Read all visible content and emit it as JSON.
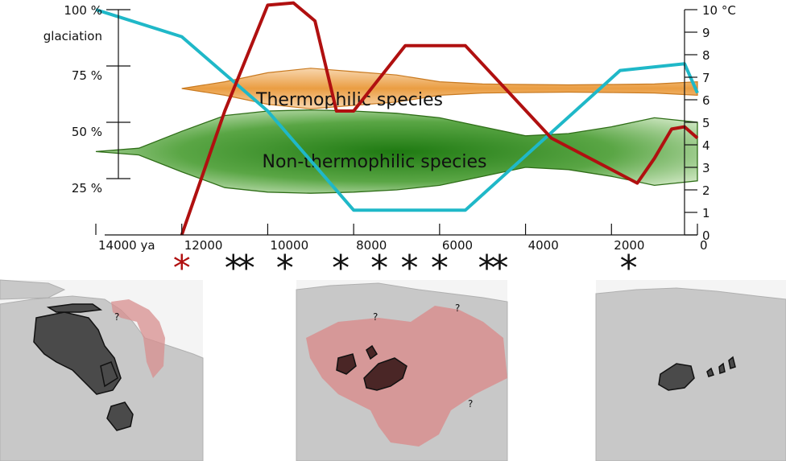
{
  "chart_data": {
    "type": "line",
    "x_axis": {
      "ticks": [
        14000,
        12000,
        10000,
        8000,
        6000,
        4000,
        2000,
        0
      ],
      "tick_labels": [
        "14000 ya",
        "12000",
        "10000",
        "8000",
        "6000",
        "4000",
        "2000",
        "0"
      ],
      "range": [
        14300,
        0
      ],
      "reversed": true
    },
    "y_left": {
      "range": [
        0,
        100
      ],
      "ticks": [
        100,
        75,
        50,
        25
      ],
      "tick_labels": [
        "100 %",
        "75 %",
        "50 %",
        "25 %"
      ],
      "label": "glaciation"
    },
    "y_right": {
      "range": [
        0,
        10
      ],
      "ticks": [
        0,
        1,
        2,
        3,
        4,
        5,
        6,
        7,
        8,
        9,
        10
      ],
      "tick_labels": [
        "0",
        "1",
        "2",
        "3",
        "4",
        "5",
        "6",
        "7",
        "8",
        "9",
        "10 °C"
      ]
    },
    "series": [
      {
        "axis": "left",
        "color": "#1fb8c8",
        "x": [
          14000,
          12000,
          10000,
          8000,
          5400,
          1800,
          300,
          0
        ],
        "y": [
          100,
          88,
          55,
          11,
          11,
          73,
          76,
          63
        ]
      },
      {
        "axis": "right",
        "color": "#b01010",
        "x": [
          12000,
          11000,
          10000,
          9400,
          8900,
          8400,
          8000,
          6800,
          5400,
          3400,
          1400,
          1000,
          600,
          300,
          0
        ],
        "y": [
          0,
          5.5,
          10.2,
          10.3,
          9.5,
          5.5,
          5.5,
          8.4,
          8.4,
          4.3,
          2.3,
          3.4,
          4.7,
          4.8,
          4.3
        ]
      }
    ],
    "bands": [
      {
        "name": "Thermophilic species",
        "color": "#e8932e",
        "center_temp": 6.5,
        "x": [
          12000,
          11000,
          10000,
          9000,
          8000,
          7000,
          6000,
          5000,
          4000,
          3000,
          2000,
          1000,
          0
        ],
        "half_width": [
          0,
          0.3,
          0.7,
          0.9,
          0.75,
          0.6,
          0.3,
          0.2,
          0.18,
          0.16,
          0.18,
          0.2,
          0.3
        ]
      },
      {
        "name": "Non-thermophilic species",
        "color": "#3a8a1e",
        "center_temp": 3.7,
        "x": [
          14000,
          13000,
          12000,
          11000,
          10000,
          9000,
          8000,
          7000,
          6000,
          5000,
          4000,
          3000,
          2000,
          1000,
          0
        ],
        "half_width": [
          0,
          0.15,
          0.9,
          1.6,
          1.8,
          1.85,
          1.8,
          1.7,
          1.5,
          1.1,
          0.7,
          0.8,
          1.1,
          1.5,
          1.3
        ]
      }
    ],
    "markers": {
      "glyph": "*",
      "years": [
        12000,
        10800,
        10500,
        9600,
        8300,
        7400,
        6700,
        6000,
        4900,
        4600,
        1600
      ],
      "colors": [
        "#b01010",
        "#111111",
        "#111111",
        "#111111",
        "#111111",
        "#111111",
        "#111111",
        "#111111",
        "#111111",
        "#111111",
        "#111111"
      ]
    },
    "maps": [
      {
        "question_marks": [
          "?"
        ]
      },
      {
        "question_marks": [
          "?",
          "?",
          "?"
        ]
      },
      {
        "question_marks": []
      }
    ]
  }
}
